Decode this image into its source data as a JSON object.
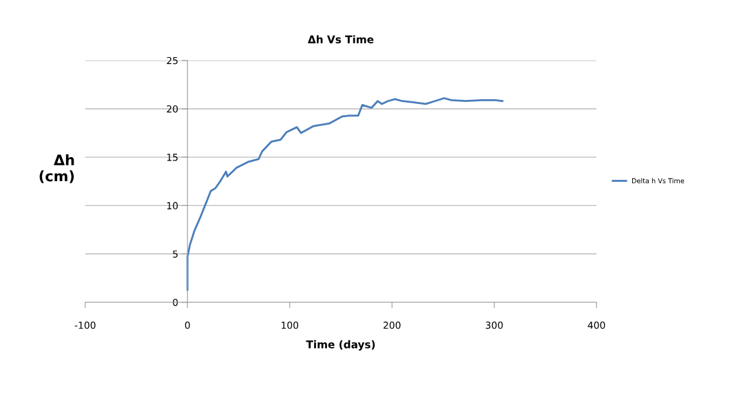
{
  "chart_data": {
    "type": "line",
    "title": "Δh Vs Time",
    "xlabel": "Time (days)",
    "ylabel": "Δh\n(cm)",
    "xlim": [
      -100,
      400
    ],
    "xticks": [
      -100,
      0,
      100,
      200,
      300,
      400
    ],
    "ylim": [
      0,
      25
    ],
    "yticks": [
      0,
      5,
      10,
      15,
      20,
      25
    ],
    "grid": "y",
    "legend": "right",
    "marker": "none",
    "line_style": "solid",
    "series": [
      {
        "name": "Delta h Vs Time",
        "color": "#4a7ebb",
        "x": [
          0,
          0,
          2.3,
          6.8,
          12.6,
          18.3,
          22.8,
          27.4,
          32,
          37.7,
          39,
          48,
          59,
          69.6,
          73,
          82,
          91,
          97,
          107,
          111,
          123,
          139,
          151,
          158,
          167,
          171,
          180,
          186,
          190,
          196,
          203,
          210,
          219,
          233,
          242,
          251,
          258,
          272,
          288,
          301,
          308
        ],
        "values": [
          1.3,
          4.7,
          5.9,
          7.4,
          8.8,
          10.3,
          11.5,
          11.8,
          12.5,
          13.5,
          13.0,
          13.9,
          14.5,
          14.8,
          15.6,
          16.6,
          16.8,
          17.6,
          18.1,
          17.5,
          18.2,
          18.5,
          19.2,
          19.3,
          19.3,
          20.4,
          20.1,
          20.8,
          20.5,
          20.8,
          21.0,
          20.8,
          20.7,
          20.5,
          20.8,
          21.1,
          20.9,
          20.8,
          20.9,
          20.9,
          20.8
        ]
      }
    ]
  }
}
